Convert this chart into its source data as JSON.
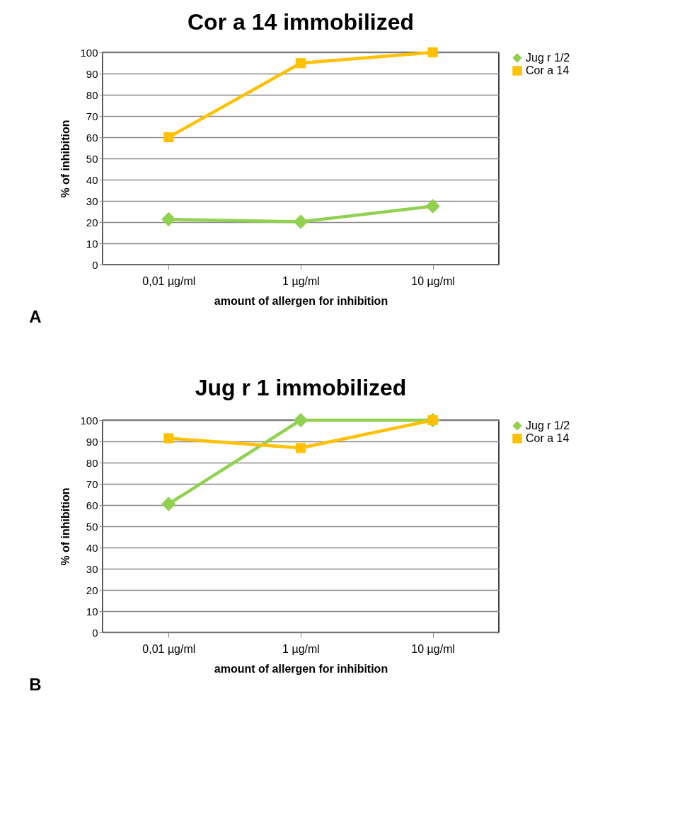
{
  "chart_data": [
    {
      "type": "line",
      "title": "Cor a 14 immobilized",
      "xlabel": "amount of allergen for inhibition",
      "ylabel": "% of inhibition",
      "categories": [
        "0,01 µg/ml",
        "1 µg/ml",
        "10 µg/ml"
      ],
      "series": [
        {
          "name": "Jug r 1/2",
          "color": "#92d050",
          "marker": "diamond",
          "values": [
            21.3,
            20.2,
            27.5
          ]
        },
        {
          "name": "Cor a 14",
          "color": "#ffc000",
          "marker": "square",
          "values": [
            60,
            94.9,
            100
          ]
        }
      ],
      "ylim": [
        0,
        100
      ],
      "yticks": [
        0,
        10,
        20,
        30,
        40,
        50,
        60,
        70,
        80,
        90,
        100
      ],
      "grid": "y",
      "legend": "right",
      "line_style": "solid",
      "annotations": [
        "A"
      ]
    },
    {
      "type": "line",
      "title": "Jug r 1 immobilized",
      "xlabel": "amount of allergen for inhibition",
      "ylabel": "% of inhibition",
      "categories": [
        "0,01 µg/ml",
        "1 µg/ml",
        "10 µg/ml"
      ],
      "series": [
        {
          "name": "Jug r 1/2",
          "color": "#92d050",
          "marker": "diamond",
          "values": [
            60.5,
            100,
            100
          ]
        },
        {
          "name": "Cor a 14",
          "color": "#ffc000",
          "marker": "square",
          "values": [
            91.5,
            86.9,
            100
          ]
        }
      ],
      "ylim": [
        0,
        100
      ],
      "yticks": [
        0,
        10,
        20,
        30,
        40,
        50,
        60,
        70,
        80,
        90,
        100
      ],
      "grid": "y",
      "legend": "right",
      "line_style": "solid",
      "annotations": [
        "B"
      ]
    }
  ]
}
